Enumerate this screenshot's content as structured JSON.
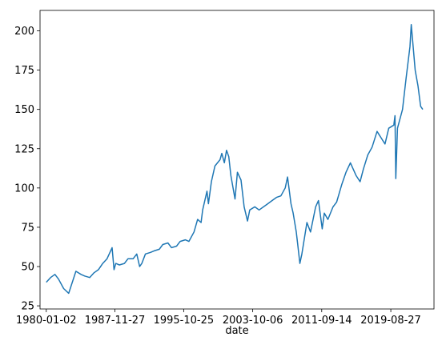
{
  "chart_data": {
    "type": "line",
    "title": "",
    "xlabel": "date",
    "ylabel": "",
    "grid": false,
    "legend": "none",
    "line_color": "#1f77b4",
    "xlim": [
      "1979-04-15",
      "2024-08-15"
    ],
    "ylim": [
      23,
      213
    ],
    "x_ticks": [
      "1980-01-02",
      "1987-11-27",
      "1995-10-25",
      "2003-10-06",
      "2011-09-14",
      "2019-08-27"
    ],
    "y_ticks": [
      25,
      50,
      75,
      100,
      125,
      150,
      175,
      200
    ],
    "series": [
      {
        "x": [
          "1980-01-02",
          "1980-07-01",
          "1981-01-01",
          "1981-06-01",
          "1982-01-01",
          "1982-08-01",
          "1983-01-01",
          "1983-06-01",
          "1984-01-01",
          "1984-06-01",
          "1985-01-01",
          "1985-07-01",
          "1986-01-01",
          "1986-07-01",
          "1987-01-01",
          "1987-08-01",
          "1987-10-20",
          "1988-01-01",
          "1988-06-01",
          "1989-01-01",
          "1989-06-01",
          "1990-01-01",
          "1990-06-01",
          "1990-10-01",
          "1991-01-01",
          "1991-06-01",
          "1992-01-01",
          "1992-06-01",
          "1993-01-01",
          "1993-06-01",
          "1994-01-01",
          "1994-06-01",
          "1995-01-01",
          "1995-06-01",
          "1996-01-01",
          "1996-06-01",
          "1997-01-01",
          "1997-06-01",
          "1997-10-27",
          "1998-01-01",
          "1998-07-01",
          "1998-09-01",
          "1999-01-01",
          "1999-06-01",
          "2000-01-01",
          "2000-03-15",
          "2000-07-01",
          "2000-10-01",
          "2001-01-01",
          "2001-04-01",
          "2001-09-20",
          "2002-01-01",
          "2002-06-01",
          "2002-10-09",
          "2003-03-01",
          "2003-06-01",
          "2004-01-01",
          "2004-07-01",
          "2005-01-01",
          "2005-07-01",
          "2006-01-01",
          "2006-07-01",
          "2007-01-01",
          "2007-07-01",
          "2007-10-09",
          "2008-03-01",
          "2008-06-01",
          "2008-10-10",
          "2008-12-01",
          "2009-03-09",
          "2009-06-01",
          "2010-01-01",
          "2010-06-01",
          "2011-01-01",
          "2011-04-29",
          "2011-10-03",
          "2012-01-01",
          "2012-06-01",
          "2013-01-01",
          "2013-06-01",
          "2014-01-01",
          "2014-07-01",
          "2015-01-01",
          "2015-08-24",
          "2016-02-11",
          "2016-07-01",
          "2017-01-01",
          "2017-07-01",
          "2018-01-26",
          "2018-12-24",
          "2019-06-01",
          "2020-01-01",
          "2020-02-19",
          "2020-03-23",
          "2020-06-01",
          "2021-01-01",
          "2021-06-01",
          "2021-11-08",
          "2022-01-03",
          "2022-06-16",
          "2022-10-12",
          "2023-02-01",
          "2023-05-01"
        ],
        "y": [
          40,
          43,
          45,
          42,
          36,
          33,
          40,
          47,
          45,
          44,
          43,
          46,
          48,
          52,
          55,
          62,
          48,
          52,
          51,
          52,
          55,
          55,
          58,
          50,
          52,
          58,
          59,
          60,
          61,
          64,
          65,
          62,
          63,
          66,
          67,
          66,
          72,
          80,
          78,
          86,
          98,
          90,
          104,
          114,
          118,
          122,
          116,
          124,
          120,
          108,
          93,
          110,
          105,
          88,
          79,
          86,
          88,
          86,
          88,
          90,
          92,
          94,
          95,
          100,
          107,
          90,
          84,
          72,
          65,
          52,
          58,
          78,
          72,
          88,
          92,
          74,
          84,
          80,
          88,
          91,
          102,
          110,
          116,
          108,
          104,
          112,
          121,
          126,
          136,
          128,
          138,
          140,
          146,
          106,
          138,
          150,
          170,
          190,
          204,
          175,
          165,
          152,
          150
        ]
      }
    ]
  }
}
